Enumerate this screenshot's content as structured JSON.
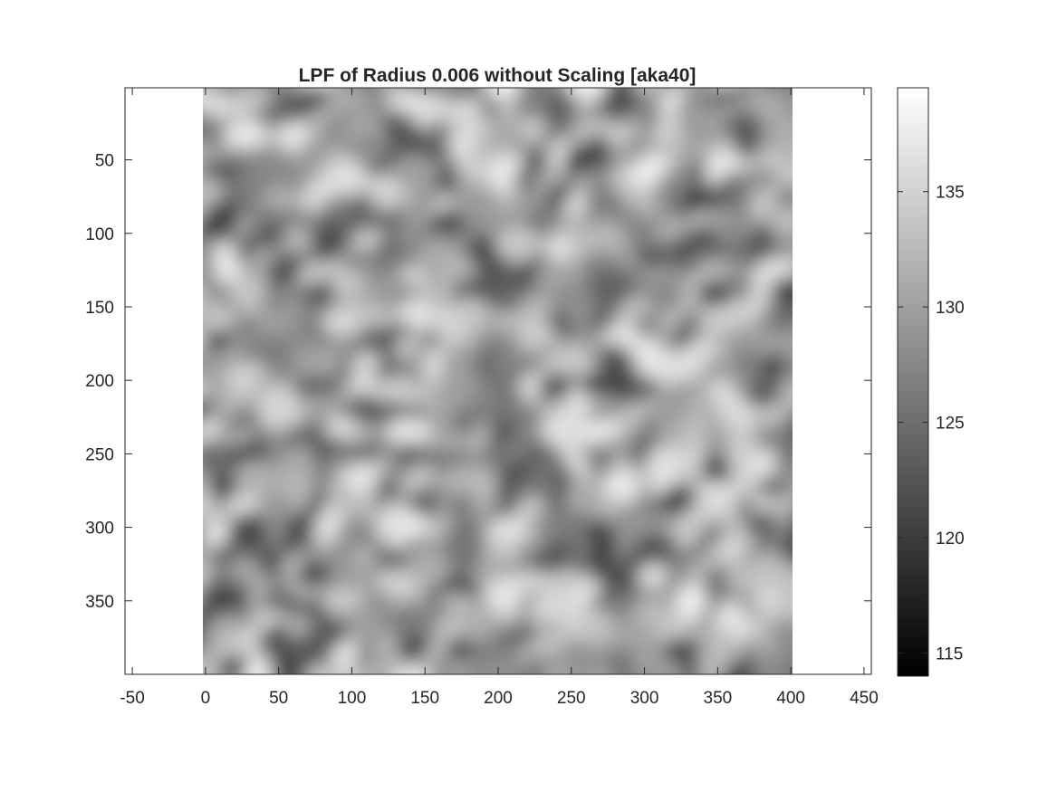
{
  "chart_data": {
    "type": "heatmap",
    "title": "LPF of Radius 0.006 without Scaling [aka40]",
    "xlabel": "",
    "ylabel": "",
    "xlim": [
      -55,
      455
    ],
    "ylim": [
      1,
      400
    ],
    "y_reversed": true,
    "image_extent": {
      "x": [
        0,
        400
      ],
      "y": [
        1,
        400
      ]
    },
    "x_ticks": [
      -50,
      0,
      50,
      100,
      150,
      200,
      250,
      300,
      350,
      400,
      450
    ],
    "x_tick_labels": [
      "-50",
      "0",
      "50",
      "100",
      "150",
      "200",
      "250",
      "300",
      "350",
      "400",
      "450"
    ],
    "y_ticks": [
      50,
      100,
      150,
      200,
      250,
      300,
      350
    ],
    "y_tick_labels": [
      "50",
      "100",
      "150",
      "200",
      "250",
      "300",
      "350"
    ],
    "colormap": "gray",
    "clim": [
      114,
      139.5
    ],
    "colorbar": {
      "ticks": [
        115,
        120,
        125,
        130,
        135
      ],
      "tick_labels": [
        "115",
        "120",
        "125",
        "130",
        "135"
      ]
    },
    "grid": false
  }
}
